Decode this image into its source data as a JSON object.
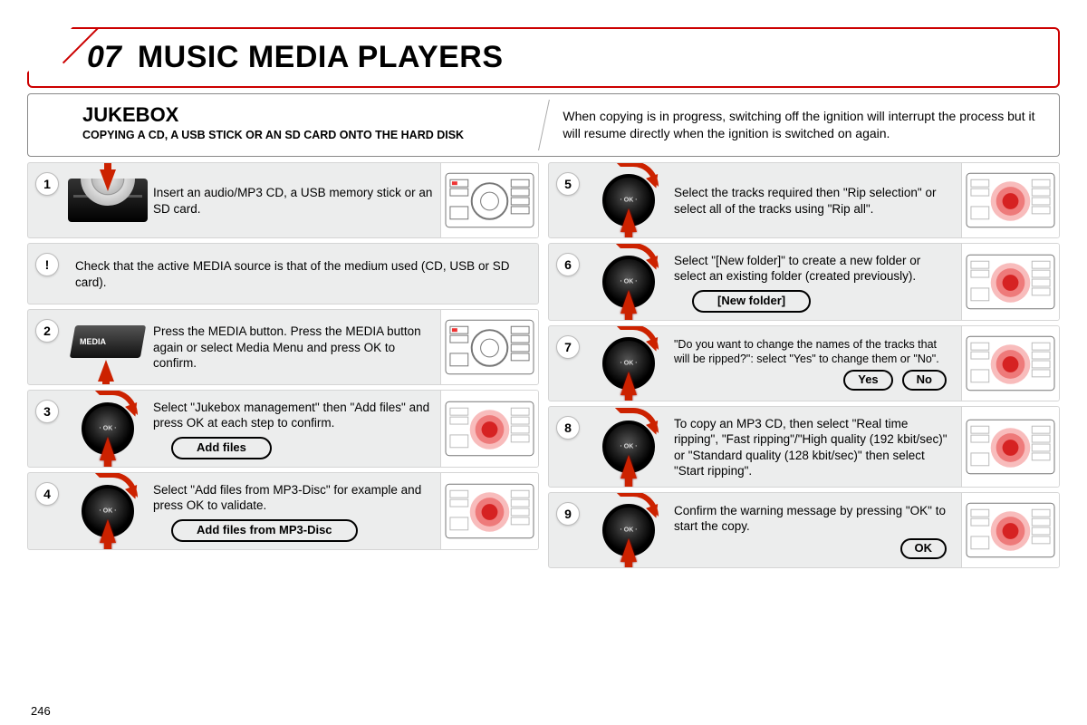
{
  "chapter": {
    "number": "07",
    "title": "MUSIC MEDIA PLAYERS"
  },
  "intro": {
    "heading": "JUKEBOX",
    "subheading": "COPYING A CD, A USB STICK OR AN SD CARD ONTO THE HARD DISK",
    "note": "When copying is in progress, switching off the ignition will interrupt the process but it will resume directly when the ignition is switched on again."
  },
  "left_steps": [
    {
      "num": "1",
      "icon": "cdslot",
      "text": "Insert an audio/MP3 CD, a USB memory stick or an SD card.",
      "thumb": "plain"
    },
    {
      "num": "!",
      "icon": "none",
      "is_note": true,
      "text": "Check that the active MEDIA source is that of the medium used (CD, USB or SD card)."
    },
    {
      "num": "2",
      "icon": "media",
      "text": "Press the MEDIA button. Press the MEDIA button again or select Media Menu and press OK to confirm.",
      "thumb": "plain"
    },
    {
      "num": "3",
      "icon": "dial-turn",
      "text": "Select \"Jukebox management\" then \"Add files\" and press OK at each step to confirm.",
      "pill": "Add files",
      "thumb": "red"
    },
    {
      "num": "4",
      "icon": "dial-turn",
      "text": "Select \"Add files from MP3-Disc\" for example and press OK to validate.",
      "pill": "Add files from MP3-Disc",
      "thumb": "red"
    }
  ],
  "right_steps": [
    {
      "num": "5",
      "icon": "dial-turn",
      "text": "Select the tracks required then \"Rip selection\" or select all of the tracks using \"Rip all\".",
      "thumb": "red"
    },
    {
      "num": "6",
      "icon": "dial-turn",
      "text": "Select \"[New folder]\" to create a new folder or select an existing folder (created previously).",
      "pill": "[New folder]",
      "thumb": "red"
    },
    {
      "num": "7",
      "icon": "dial-turn",
      "text": "\"Do you want to change the names of the tracks that will be ripped?\": select \"Yes\" to change them or \"No\".",
      "buttons": [
        "Yes",
        "No"
      ],
      "thumb": "red",
      "small_text": true
    },
    {
      "num": "8",
      "icon": "dial-turn",
      "text": "To copy an MP3 CD, then select \"Real time ripping\", \"Fast ripping\"/\"High quality (192 kbit/sec)\" or \"Standard quality (128 kbit/sec)\" then select \"Start ripping\".",
      "thumb": "red"
    },
    {
      "num": "9",
      "icon": "dial-turn",
      "text": "Confirm the warning message by pressing \"OK\" to start the copy.",
      "buttons": [
        "OK"
      ],
      "thumb": "red"
    }
  ],
  "media_label": "MEDIA",
  "page_number": "246",
  "colors": {
    "accent": "#c20",
    "border": "#c00",
    "step_bg": "#eceded"
  }
}
